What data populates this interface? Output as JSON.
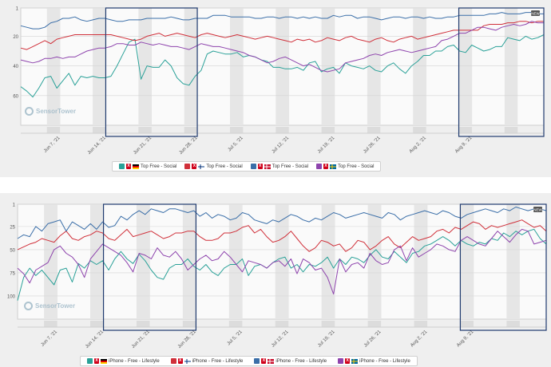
{
  "colors": {
    "teal": "#2aa198",
    "red": "#d0303a",
    "blue": "#3a6ea8",
    "purple": "#8e44ad",
    "highlight_box": "#1f3a6e",
    "grid": "#d4d4d4",
    "weekend_band": "#e6e6e6"
  },
  "chart_data": [
    {
      "type": "line",
      "title": "",
      "y_reversed": true,
      "ylim": [
        1,
        80
      ],
      "yticks": [
        "1",
        "20",
        "40",
        "60"
      ],
      "xticks": [
        "Jun 7, '21",
        "Jun 14, '21",
        "Jun 21, '21",
        "Jun 28, '21",
        "Jul 5, '21",
        "Jul 12, '21",
        "Jul 19, '21",
        "Jul 26, '21",
        "Aug 2, '21",
        "Aug 9, '21"
      ],
      "x_start": "2021-06-01",
      "x_end": "2021-08-20",
      "highlight_ranges": [
        [
          "2021-06-14",
          "2021-06-28"
        ],
        [
          "2021-08-07",
          "2021-08-20"
        ]
      ],
      "badge": "NEW",
      "series": [
        {
          "name": "Top Free - Social",
          "color": "#2aa198",
          "flag": "de",
          "values": [
            54,
            57,
            61,
            55,
            48,
            47,
            55,
            50,
            45,
            53,
            47,
            48,
            47,
            48,
            48,
            47,
            40,
            32,
            24,
            22,
            49,
            40,
            41,
            41,
            36,
            40,
            48,
            52,
            53,
            47,
            43,
            32,
            30,
            31,
            32,
            32,
            31,
            34,
            33,
            34,
            36,
            37,
            41,
            41,
            42,
            42,
            41,
            43,
            38,
            37,
            44,
            42,
            41,
            45,
            38,
            40,
            41,
            42,
            40,
            43,
            44,
            40,
            38,
            42,
            45,
            40,
            37,
            33,
            33,
            30,
            30,
            27,
            26,
            30,
            31,
            26,
            28,
            30,
            29,
            27,
            27,
            21,
            22,
            23,
            20,
            22,
            21,
            19
          ]
        },
        {
          "name": "Top Free - Social",
          "color": "#d0303a",
          "flag": "fi",
          "values": [
            28,
            29,
            27,
            25,
            23,
            25,
            22,
            21,
            20,
            19,
            19,
            19,
            19,
            19,
            19,
            19,
            20,
            21,
            22,
            23,
            22,
            20,
            19,
            18,
            20,
            19,
            18,
            19,
            20,
            21,
            19,
            18,
            19,
            20,
            21,
            20,
            19,
            20,
            21,
            22,
            21,
            20,
            21,
            22,
            23,
            24,
            22,
            23,
            22,
            24,
            23,
            21,
            22,
            23,
            21,
            20,
            22,
            23,
            24,
            22,
            21,
            23,
            24,
            22,
            21,
            20,
            22,
            21,
            20,
            19,
            18,
            17,
            16,
            16,
            16,
            16,
            16,
            13,
            12,
            12,
            12,
            11,
            11,
            10,
            10,
            11,
            10,
            10
          ]
        },
        {
          "name": "Top Free - Social",
          "color": "#3a6ea8",
          "flag": "dk",
          "values": [
            13,
            14,
            15,
            15,
            14,
            11,
            10,
            8,
            8,
            7,
            9,
            10,
            9,
            8,
            8,
            9,
            10,
            10,
            9,
            9,
            9,
            8,
            8,
            8,
            8,
            7,
            8,
            9,
            9,
            8,
            8,
            8,
            6,
            6,
            6,
            7,
            7,
            7,
            7,
            8,
            8,
            7,
            7,
            8,
            7,
            7,
            8,
            7,
            8,
            7,
            8,
            8,
            6,
            7,
            6,
            6,
            8,
            7,
            7,
            8,
            9,
            8,
            7,
            7,
            8,
            7,
            7,
            8,
            7,
            8,
            8,
            7,
            7,
            6,
            6,
            6,
            6,
            6,
            5,
            5,
            4,
            5,
            5,
            5,
            4,
            4,
            5,
            5
          ]
        },
        {
          "name": "Top Free - Social",
          "color": "#8e44ad",
          "flag": "se",
          "values": [
            36,
            37,
            38,
            37,
            35,
            35,
            34,
            35,
            34,
            34,
            32,
            30,
            29,
            28,
            28,
            27,
            25,
            25,
            26,
            26,
            24,
            25,
            26,
            25,
            26,
            27,
            27,
            28,
            29,
            27,
            25,
            26,
            27,
            27,
            28,
            29,
            30,
            31,
            33,
            34,
            36,
            38,
            37,
            35,
            34,
            36,
            38,
            40,
            39,
            41,
            43,
            44,
            43,
            42,
            38,
            37,
            36,
            35,
            33,
            32,
            33,
            31,
            30,
            29,
            30,
            31,
            30,
            29,
            28,
            27,
            23,
            22,
            20,
            18,
            18,
            16,
            14,
            14,
            15,
            16,
            14,
            13,
            12,
            13,
            12,
            10,
            11,
            11
          ]
        }
      ]
    },
    {
      "type": "line",
      "title": "",
      "y_reversed": true,
      "ylim": [
        1,
        125
      ],
      "yticks": [
        "1",
        "25",
        "50",
        "75",
        "100"
      ],
      "xticks": [
        "Jun 7, '21",
        "Jun 14, '21",
        "Jun 21, '21",
        "Jun 28, '21",
        "Jul 5, '21",
        "Jul 12, '21",
        "Jul 19, '21",
        "Jul 26, '21",
        "Aug 2, '21",
        "Aug 9, '21"
      ],
      "x_start": "2021-06-01",
      "x_end": "2021-08-20",
      "highlight_ranges": [
        [
          "2021-06-14",
          "2021-06-28"
        ],
        [
          "2021-08-07",
          "2021-08-20"
        ]
      ],
      "badge": "NEW",
      "series": [
        {
          "name": "iPhone - Free - Lifestyle",
          "color": "#2aa198",
          "flag": "de",
          "values": [
            105,
            80,
            70,
            78,
            72,
            80,
            88,
            72,
            70,
            85,
            65,
            70,
            62,
            66,
            62,
            72,
            60,
            52,
            60,
            65,
            55,
            62,
            72,
            80,
            82,
            70,
            66,
            66,
            60,
            68,
            72,
            66,
            74,
            78,
            70,
            66,
            66,
            60,
            78,
            68,
            66,
            70,
            64,
            60,
            58,
            70,
            66,
            74,
            66,
            68,
            64,
            58,
            70,
            60,
            66,
            58,
            60,
            64,
            56,
            50,
            58,
            60,
            52,
            58,
            64,
            54,
            52,
            46,
            44,
            40,
            36,
            40,
            46,
            40,
            44,
            46,
            42,
            44,
            38,
            40,
            32,
            36,
            30,
            34,
            30,
            28,
            38,
            44
          ]
        },
        {
          "name": "iPhone - Free - Lifestyle",
          "color": "#d0303a",
          "flag": "fi",
          "values": [
            50,
            47,
            44,
            42,
            38,
            40,
            42,
            35,
            30,
            38,
            40,
            36,
            34,
            30,
            32,
            38,
            40,
            34,
            28,
            36,
            34,
            32,
            30,
            34,
            38,
            36,
            32,
            32,
            30,
            30,
            36,
            40,
            40,
            38,
            32,
            32,
            30,
            26,
            24,
            32,
            28,
            36,
            42,
            40,
            36,
            30,
            38,
            46,
            52,
            48,
            40,
            42,
            46,
            44,
            52,
            48,
            40,
            42,
            50,
            46,
            40,
            36,
            44,
            48,
            42,
            36,
            40,
            38,
            36,
            30,
            28,
            32,
            26,
            28,
            24,
            20,
            22,
            28,
            24,
            26,
            24,
            22,
            20,
            18,
            22,
            26,
            24,
            30
          ]
        },
        {
          "name": "iPhone - Free - Lifestyle",
          "color": "#3a6ea8",
          "flag": "dk",
          "values": [
            38,
            34,
            36,
            25,
            30,
            22,
            20,
            18,
            30,
            20,
            24,
            28,
            22,
            28,
            20,
            26,
            24,
            14,
            18,
            12,
            8,
            12,
            6,
            8,
            10,
            6,
            6,
            8,
            10,
            8,
            14,
            10,
            16,
            12,
            14,
            18,
            16,
            10,
            12,
            18,
            20,
            22,
            18,
            20,
            16,
            12,
            14,
            18,
            20,
            16,
            18,
            14,
            10,
            12,
            16,
            14,
            12,
            10,
            12,
            14,
            16,
            10,
            12,
            18,
            14,
            12,
            10,
            8,
            10,
            12,
            8,
            10,
            14,
            16,
            12,
            10,
            8,
            6,
            8,
            10,
            6,
            8,
            4,
            6,
            8,
            6,
            6,
            8
          ]
        },
        {
          "name": "iPhone - Free - Lifestyle",
          "color": "#8e44ad",
          "flag": "se",
          "values": [
            70,
            76,
            86,
            72,
            68,
            64,
            50,
            46,
            54,
            58,
            66,
            80,
            60,
            52,
            44,
            48,
            52,
            56,
            64,
            74,
            54,
            56,
            60,
            48,
            56,
            58,
            52,
            60,
            72,
            66,
            60,
            56,
            62,
            60,
            52,
            58,
            66,
            74,
            62,
            64,
            66,
            70,
            64,
            62,
            68,
            60,
            76,
            60,
            64,
            72,
            70,
            80,
            98,
            60,
            74,
            66,
            64,
            70,
            54,
            62,
            66,
            64,
            50,
            46,
            62,
            48,
            58,
            54,
            50,
            44,
            46,
            50,
            52,
            40,
            36,
            40,
            44,
            46,
            38,
            30,
            36,
            42,
            34,
            28,
            30,
            44,
            42,
            40
          ]
        }
      ]
    }
  ]
}
